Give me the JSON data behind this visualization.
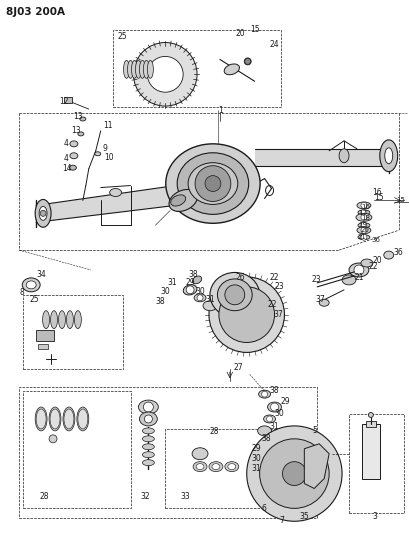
{
  "title": "8J03 200A",
  "bg_color": "#ffffff",
  "lc": "#1a1a1a",
  "gc": "#888888",
  "figsize": [
    4.1,
    5.33
  ],
  "dpi": 100
}
